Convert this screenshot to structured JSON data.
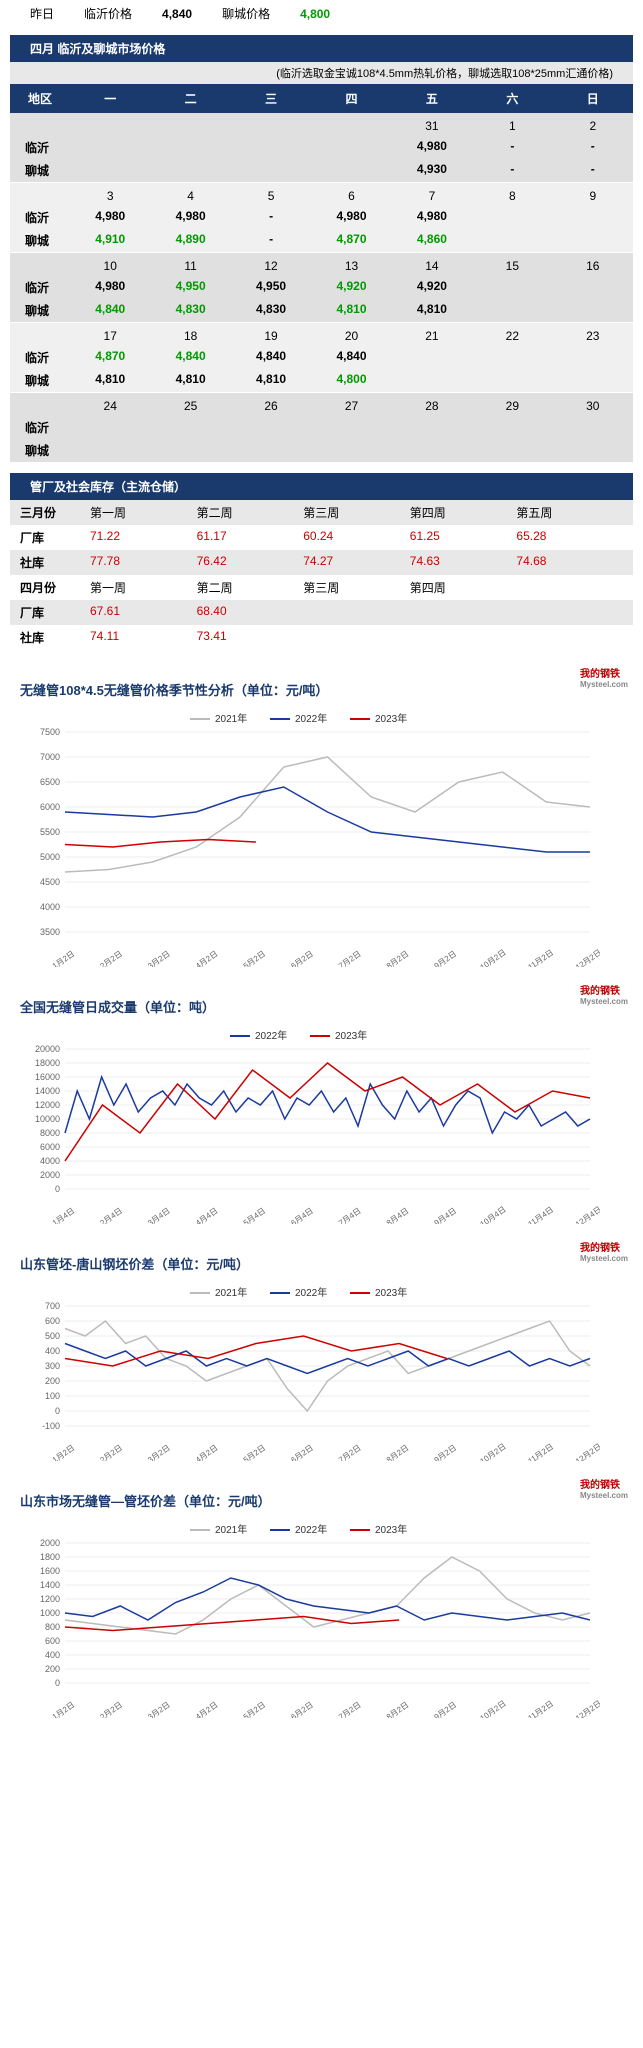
{
  "top": {
    "yesterday": "昨日",
    "linyi_label": "临沂价格",
    "linyi_val": "4,840",
    "liaocheng_label": "聊城价格",
    "liaocheng_val": "4,800"
  },
  "calendar": {
    "title": "四月 临沂及聊城市场价格",
    "note": "(临沂选取金宝诚108*4.5mm热轧价格，聊城选取108*25mm汇通价格)",
    "days": [
      "地区",
      "一",
      "二",
      "三",
      "四",
      "五",
      "六",
      "日"
    ],
    "city1": "临沂",
    "city2": "聊城",
    "weeks": [
      {
        "dates": [
          "",
          "",
          "",
          "",
          "31",
          "1",
          "2"
        ],
        "r1": [
          "",
          "",
          "",
          "",
          "4,980",
          "-",
          "-"
        ],
        "r1c": [
          "",
          "",
          "",
          "",
          "",
          "",
          ""
        ],
        "r2": [
          "",
          "",
          "",
          "",
          "4,930",
          "-",
          "-"
        ],
        "r2c": [
          "",
          "",
          "",
          "",
          "",
          "",
          ""
        ]
      },
      {
        "dates": [
          "3",
          "4",
          "5",
          "6",
          "7",
          "8",
          "9"
        ],
        "r1": [
          "4,980",
          "4,980",
          "-",
          "4,980",
          "4,980",
          "",
          ""
        ],
        "r1c": [
          "",
          "",
          "",
          "",
          "",
          "",
          ""
        ],
        "r2": [
          "4,910",
          "4,890",
          "-",
          "4,870",
          "4,860",
          "",
          ""
        ],
        "r2c": [
          "g",
          "g",
          "",
          "g",
          "g",
          "",
          ""
        ]
      },
      {
        "dates": [
          "10",
          "11",
          "12",
          "13",
          "14",
          "15",
          "16"
        ],
        "r1": [
          "4,980",
          "4,950",
          "4,950",
          "4,920",
          "4,920",
          "",
          ""
        ],
        "r1c": [
          "",
          "g",
          "",
          "g",
          "",
          "",
          ""
        ],
        "r2": [
          "4,840",
          "4,830",
          "4,830",
          "4,810",
          "4,810",
          "",
          ""
        ],
        "r2c": [
          "g",
          "g",
          "",
          "g",
          "",
          "",
          ""
        ]
      },
      {
        "dates": [
          "17",
          "18",
          "19",
          "20",
          "21",
          "22",
          "23"
        ],
        "r1": [
          "4,870",
          "4,840",
          "4,840",
          "4,840",
          "",
          "",
          ""
        ],
        "r1c": [
          "g",
          "g",
          "",
          "",
          "",
          "",
          ""
        ],
        "r2": [
          "4,810",
          "4,810",
          "4,810",
          "4,800",
          "",
          "",
          ""
        ],
        "r2c": [
          "",
          "",
          "",
          "g",
          "",
          "",
          ""
        ]
      },
      {
        "dates": [
          "24",
          "25",
          "26",
          "27",
          "28",
          "29",
          "30"
        ],
        "r1": [
          "",
          "",
          "",
          "",
          "",
          "",
          ""
        ],
        "r1c": [
          "",
          "",
          "",
          "",
          "",
          "",
          ""
        ],
        "r2": [
          "",
          "",
          "",
          "",
          "",
          "",
          ""
        ],
        "r2c": [
          "",
          "",
          "",
          "",
          "",
          "",
          ""
        ]
      }
    ]
  },
  "inventory": {
    "title": "管厂及社会库存（主流仓储）",
    "h_march": "三月份",
    "h_april": "四月份",
    "weeks5": [
      "第一周",
      "第二周",
      "第三周",
      "第四周",
      "第五周"
    ],
    "weeks4": [
      "第一周",
      "第二周",
      "第三周",
      "第四周",
      ""
    ],
    "factory": "厂库",
    "social": "社库",
    "march_f": [
      "71.22",
      "61.17",
      "60.24",
      "61.25",
      "65.28"
    ],
    "march_s": [
      "77.78",
      "76.42",
      "74.27",
      "74.63",
      "74.68"
    ],
    "april_f": [
      "67.61",
      "68.40",
      "",
      "",
      ""
    ],
    "april_s": [
      "74.11",
      "73.41",
      "",
      "",
      ""
    ]
  },
  "charts": {
    "watermark": "我的钢铁",
    "watermark_sub": "Mysteel.com",
    "c1": {
      "title": "无缝管108*4.5无缝管价格季节性分析（单位：元/吨）",
      "legend": [
        "2021年",
        "2022年",
        "2023年"
      ],
      "colors": [
        "#bbbbbb",
        "#1a3a9e",
        "#cc0000"
      ],
      "xticks": [
        "1月2日",
        "2月2日",
        "3月2日",
        "4月2日",
        "5月2日",
        "6月2日",
        "7月2日",
        "8月2日",
        "9月2日",
        "10月2日",
        "11月2日",
        "12月2日"
      ],
      "ylim": [
        3500,
        7500
      ],
      "ystep": 500,
      "s2021": [
        4700,
        4750,
        4900,
        5200,
        5800,
        6800,
        7000,
        6200,
        5900,
        6500,
        6700,
        6100,
        6000
      ],
      "s2022": [
        5900,
        5850,
        5800,
        5900,
        6200,
        6400,
        5900,
        5500,
        5400,
        5300,
        5200,
        5100,
        5100
      ],
      "s2023": [
        5250,
        5200,
        5300,
        5350,
        5300
      ]
    },
    "c2": {
      "title": "全国无缝管日成交量（单位：吨）",
      "legend": [
        "2022年",
        "2023年"
      ],
      "colors": [
        "#1a3a9e",
        "#cc0000"
      ],
      "xticks": [
        "1月4日",
        "2月4日",
        "3月4日",
        "4月4日",
        "5月4日",
        "6月4日",
        "7月4日",
        "8月4日",
        "9月4日",
        "10月4日",
        "11月4日",
        "12月4日"
      ],
      "ylim": [
        0,
        20000
      ],
      "ystep": 2000,
      "s2022": [
        8000,
        14000,
        10000,
        16000,
        12000,
        15000,
        11000,
        13000,
        14000,
        12000,
        15000,
        13000,
        12000,
        14000,
        11000,
        13000,
        12000,
        14000,
        10000,
        13000,
        12000,
        14000,
        11000,
        13000,
        9000,
        15000,
        12000,
        10000,
        14000,
        11000,
        13000,
        9000,
        12000,
        14000,
        13000,
        8000,
        11000,
        10000,
        12000,
        9000,
        10000,
        11000,
        9000,
        10000
      ],
      "s2023": [
        4000,
        12000,
        8000,
        15000,
        10000,
        17000,
        13000,
        18000,
        14000,
        16000,
        12000,
        15000,
        11000,
        14000,
        13000
      ]
    },
    "c3": {
      "title": "山东管坯-唐山钢坯价差（单位：元/吨）",
      "legend": [
        "2021年",
        "2022年",
        "2023年"
      ],
      "colors": [
        "#bbbbbb",
        "#1a3a9e",
        "#cc0000"
      ],
      "xticks": [
        "1月2日",
        "2月2日",
        "3月2日",
        "4月2日",
        "5月2日",
        "6月2日",
        "7月2日",
        "8月2日",
        "9月2日",
        "10月2日",
        "11月2日",
        "12月2日"
      ],
      "ylim": [
        -100,
        700
      ],
      "ystep": 100,
      "s2021": [
        550,
        500,
        600,
        450,
        500,
        350,
        300,
        200,
        250,
        300,
        350,
        150,
        0,
        200,
        300,
        350,
        400,
        250,
        300,
        350,
        400,
        450,
        500,
        550,
        600,
        400,
        300
      ],
      "s2022": [
        450,
        400,
        350,
        400,
        300,
        350,
        400,
        300,
        350,
        300,
        350,
        300,
        250,
        300,
        350,
        300,
        350,
        400,
        300,
        350,
        300,
        350,
        400,
        300,
        350,
        300,
        350
      ],
      "s2023": [
        350,
        300,
        400,
        350,
        450,
        500,
        400,
        450,
        350
      ]
    },
    "c4": {
      "title": "山东市场无缝管—管坯价差（单位：元/吨）",
      "legend": [
        "2021年",
        "2022年",
        "2023年"
      ],
      "colors": [
        "#bbbbbb",
        "#1a3a9e",
        "#cc0000"
      ],
      "xticks": [
        "1月2日",
        "2月2日",
        "3月2日",
        "4月2日",
        "5月2日",
        "6月2日",
        "7月2日",
        "8月2日",
        "9月2日",
        "10月2日",
        "11月2日",
        "12月2日"
      ],
      "ylim": [
        0,
        2000
      ],
      "ystep": 200,
      "s2021": [
        900,
        850,
        800,
        750,
        700,
        900,
        1200,
        1400,
        1100,
        800,
        900,
        1000,
        1100,
        1500,
        1800,
        1600,
        1200,
        1000,
        900,
        1000
      ],
      "s2022": [
        1000,
        950,
        1100,
        900,
        1150,
        1300,
        1500,
        1400,
        1200,
        1100,
        1050,
        1000,
        1100,
        900,
        1000,
        950,
        900,
        950,
        1000,
        900
      ],
      "s2023": [
        800,
        750,
        800,
        850,
        900,
        950,
        850,
        900
      ]
    }
  }
}
